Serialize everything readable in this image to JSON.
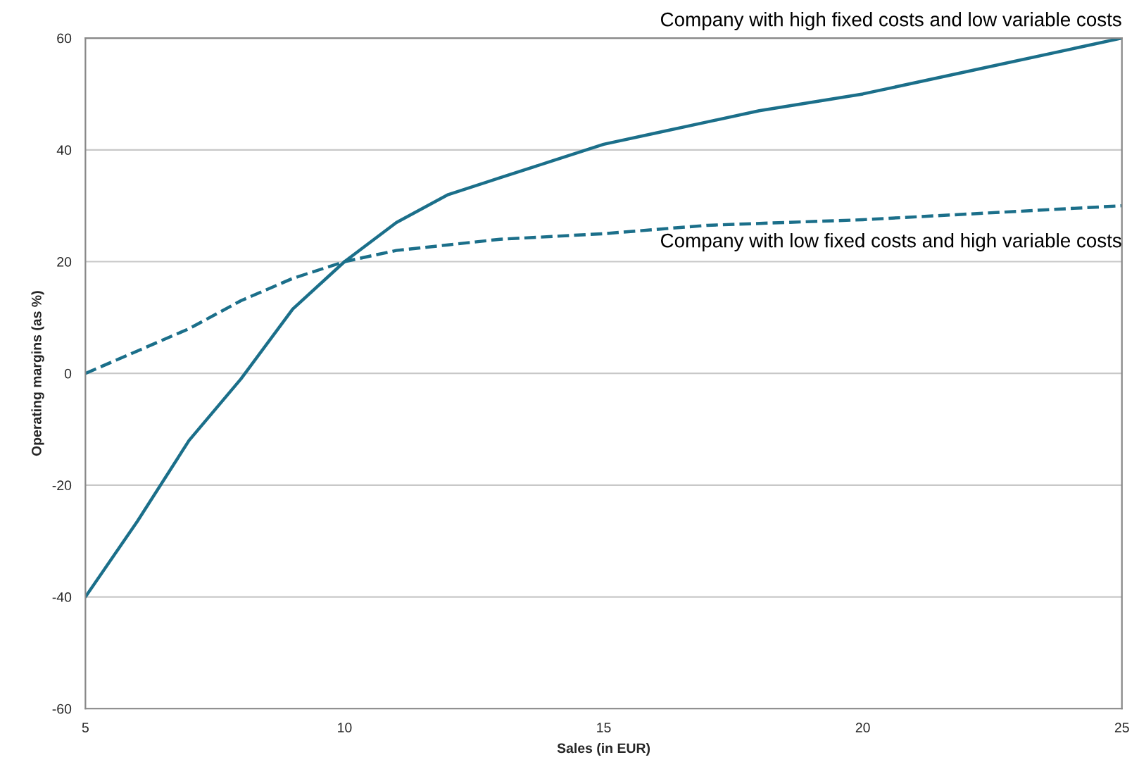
{
  "chart_data": {
    "type": "line",
    "xlabel": "Sales (in EUR)",
    "ylabel": "Operating margins (as %)",
    "xlim": [
      5,
      25
    ],
    "xticks": [
      5,
      10,
      15,
      20,
      25
    ],
    "ylim": [
      -60,
      60
    ],
    "yticks": [
      -60,
      -40,
      -20,
      0,
      20,
      40,
      60
    ],
    "grid": "y",
    "series": [
      {
        "name": "Company with high fixed costs and low variable costs",
        "color": "#1b6f8a",
        "line_style": "solid",
        "x": [
          5,
          6,
          7,
          8,
          9,
          10,
          11,
          12,
          13,
          14,
          15,
          16,
          17,
          18,
          20,
          22,
          25
        ],
        "values": [
          -40,
          -26.5,
          -12,
          -1,
          11.5,
          20,
          27,
          32,
          35,
          38,
          41,
          43,
          45,
          47,
          50,
          54,
          60
        ]
      },
      {
        "name": "Company with low fixed costs and high variable costs",
        "color": "#1b6f8a",
        "line_style": "dashed",
        "x": [
          5,
          6,
          7,
          8,
          9,
          10,
          11,
          12,
          13,
          15,
          17,
          20,
          22,
          25
        ],
        "values": [
          0,
          4,
          8,
          13,
          17,
          20,
          22,
          23,
          24,
          25,
          26.5,
          27.5,
          28.5,
          30
        ]
      }
    ]
  }
}
